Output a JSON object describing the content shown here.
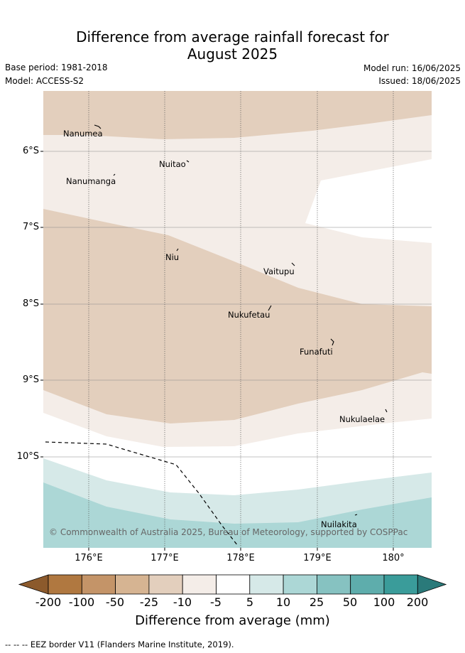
{
  "title": {
    "line1": "Difference from average rainfall forecast for",
    "line2": "August 2025"
  },
  "meta": {
    "base_period": "Base period: 1981-2018",
    "model": "Model: ACCESS-S2",
    "model_run": "Model run: 16/06/2025",
    "issued": "Issued: 18/06/2025"
  },
  "map": {
    "lat_labels": [
      "6°S",
      "7°S",
      "8°S",
      "9°S",
      "10°S"
    ],
    "lon_labels": [
      "176°E",
      "177°E",
      "178°E",
      "179°E",
      "180°"
    ],
    "places": [
      {
        "name": "Nanumea"
      },
      {
        "name": "Nuitao"
      },
      {
        "name": "Nanumanga"
      },
      {
        "name": "Niu"
      },
      {
        "name": "Vaitupu"
      },
      {
        "name": "Nukufetau"
      },
      {
        "name": "Funafuti"
      },
      {
        "name": "Nukulaelae"
      },
      {
        "name": "Nuilakita"
      }
    ],
    "copyright": "© Commonwealth of Australia 2025, Bureau of Meteorology, supported by COSPPac"
  },
  "colorbar": {
    "ticks": [
      "-200",
      "-100",
      "-50",
      "-25",
      "-10",
      "-5",
      "5",
      "10",
      "25",
      "50",
      "100",
      "200"
    ],
    "colors": [
      "#8c5a2c",
      "#b07840",
      "#c49468",
      "#d6b492",
      "#e3cfbd",
      "#f4ede8",
      "#ffffff",
      "#d6e9e8",
      "#acd7d6",
      "#86c2c1",
      "#5eadac",
      "#3a9c9a",
      "#2a7a7a"
    ],
    "label": "Difference from average (mm)"
  },
  "legend_note": "--  --  -- EEZ border V11 (Flanders Marine Institute, 2019)."
}
